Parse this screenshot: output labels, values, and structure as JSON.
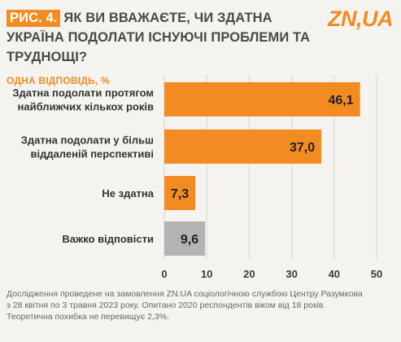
{
  "header": {
    "figure_label": "РИС. 4.",
    "title": "ЯК ВИ ВВАЖАЄТЕ, ЧИ ЗДАТНА УКРАЇНА ПОДОЛАТИ ІСНУЮЧІ ПРОБЛЕМИ ТА ТРУДНОЩІ?",
    "subtitle": "ОДНА ВІДПОВІДЬ, %"
  },
  "logo": "ZN,UA",
  "chart_data": {
    "type": "bar",
    "orientation": "horizontal",
    "categories": [
      [
        "Здатна подолати протягом",
        "найближчих кількох років"
      ],
      [
        "Здатна подолати у більш",
        "віддаленій перспективі"
      ],
      [
        "Не здатна"
      ],
      [
        "Важко відповісти"
      ]
    ],
    "values": [
      46.1,
      37.0,
      7.3,
      9.6
    ],
    "value_labels": [
      "46,1",
      "37,0",
      "7,3",
      "9,6"
    ],
    "bar_colors": [
      "#f28b22",
      "#f28b22",
      "#f28b22",
      "#b3b3b1"
    ],
    "xlim": [
      0,
      50
    ],
    "ticks": [
      0,
      10,
      20,
      30,
      40,
      50
    ],
    "grid": true
  },
  "footnote": [
    "Дослідження проведене на замовлення ZN.UA соціологічною службою Центру Разумкова",
    "з 28 квітня по 3 травня 2023 року. Опитано 2020 респондентів віком від 18 років.",
    "Теоретична похибка не перевищує 2,3%."
  ],
  "colors": {
    "accent": "#f28b22",
    "neutral_bar": "#b3b3b1",
    "background": "#f4f3ef"
  }
}
